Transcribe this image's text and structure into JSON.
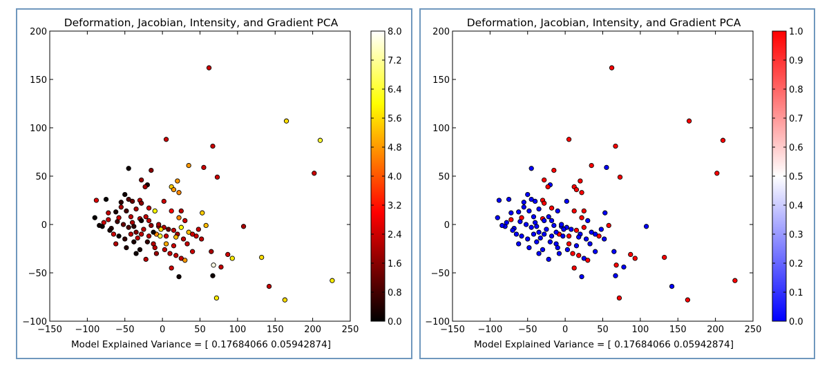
{
  "colors": {
    "frame": "#6f97bd",
    "cmap_hot": [
      "#000000",
      "#ff0000",
      "#ffff00",
      "#ffffff"
    ],
    "cmap_bwr": [
      "#0000ff",
      "#ffffff",
      "#ff0000"
    ]
  },
  "chart_data": [
    {
      "type": "scatter",
      "title": "Deformation, Jacobian, Intensity, and Gradient PCA",
      "xlabel": "Model Explained Variance = [ 0.17684066  0.05942874]",
      "ylabel": "",
      "xlim": [
        -150,
        250
      ],
      "ylim": [
        -100,
        200
      ],
      "xticks": [
        -150,
        -100,
        -50,
        0,
        50,
        100,
        150,
        200,
        250
      ],
      "yticks": [
        -100,
        -50,
        0,
        50,
        100,
        150,
        200
      ],
      "grid": false,
      "colormap": "hot",
      "colorbar": {
        "min": 0.0,
        "max": 8.0,
        "ticks": [
          "0.0",
          "0.8",
          "1.6",
          "2.4",
          "3.2",
          "4.0",
          "4.8",
          "5.6",
          "6.4",
          "7.2",
          "8.0"
        ]
      },
      "points": [
        [
          62,
          162,
          2.4
        ],
        [
          165,
          107,
          5.6
        ],
        [
          210,
          87,
          6.4
        ],
        [
          5,
          88,
          2.4
        ],
        [
          67,
          81,
          2.4
        ],
        [
          202,
          53,
          2.4
        ],
        [
          -45,
          58,
          0.2
        ],
        [
          -15,
          56,
          1.6
        ],
        [
          35,
          61,
          4.8
        ],
        [
          55,
          59,
          2.4
        ],
        [
          73,
          49,
          2.4
        ],
        [
          20,
          45,
          4.8
        ],
        [
          -28,
          46,
          1.8
        ],
        [
          -20,
          41,
          0.3
        ],
        [
          -23,
          39,
          2.0
        ],
        [
          12,
          39,
          5.4
        ],
        [
          15,
          36,
          4.8
        ],
        [
          22,
          33,
          4.6
        ],
        [
          -50,
          31,
          0.2
        ],
        [
          -45,
          26,
          1.0
        ],
        [
          -40,
          24,
          1.2
        ],
        [
          -55,
          23,
          0.5
        ],
        [
          -88,
          25,
          2.6
        ],
        [
          -75,
          26,
          0.1
        ],
        [
          -30,
          25,
          2.3
        ],
        [
          -28,
          22,
          1.6
        ],
        [
          -18,
          17,
          2.4
        ],
        [
          2,
          24,
          2.4
        ],
        [
          -10,
          14,
          6.0
        ],
        [
          12,
          14,
          3.0
        ],
        [
          25,
          14,
          2.2
        ],
        [
          53,
          12,
          5.4
        ],
        [
          -55,
          18,
          2.0
        ],
        [
          -62,
          13,
          0.3
        ],
        [
          -72,
          12,
          2.3
        ],
        [
          -35,
          16,
          2.0
        ],
        [
          -48,
          14,
          0.8
        ],
        [
          -90,
          7,
          0.1
        ],
        [
          -80,
          -2,
          0.2
        ],
        [
          -68,
          -4,
          0.5
        ],
        [
          -72,
          5,
          2.3
        ],
        [
          -60,
          3,
          0.8
        ],
        [
          -52,
          0,
          1.2
        ],
        [
          -45,
          -3,
          0.9
        ],
        [
          -40,
          2,
          2.0
        ],
        [
          -35,
          -8,
          1.5
        ],
        [
          -30,
          6,
          2.2
        ],
        [
          -22,
          8,
          2.3
        ],
        [
          -15,
          -1,
          1.7
        ],
        [
          -5,
          -2,
          2.0
        ],
        [
          -8,
          -10,
          4.6
        ],
        [
          2,
          -3,
          2.2
        ],
        [
          8,
          -5,
          1.2
        ],
        [
          5,
          -12,
          2.4
        ],
        [
          15,
          -6,
          2.3
        ],
        [
          20,
          -10,
          2.0
        ],
        [
          25,
          -3,
          6.0
        ],
        [
          35,
          -8,
          5.2
        ],
        [
          45,
          -12,
          2.4
        ],
        [
          58,
          -1,
          5.2
        ],
        [
          52,
          -15,
          2.2
        ],
        [
          22,
          7,
          4.6
        ],
        [
          30,
          4,
          2.4
        ],
        [
          -3,
          -12,
          6.4
        ],
        [
          -12,
          -20,
          2.1
        ],
        [
          -20,
          -18,
          0.6
        ],
        [
          -28,
          -10,
          2.2
        ],
        [
          -38,
          -18,
          0.3
        ],
        [
          -50,
          -15,
          0.6
        ],
        [
          -58,
          -12,
          0.2
        ],
        [
          -62,
          -20,
          2.1
        ],
        [
          -48,
          -24,
          0.4
        ],
        [
          -35,
          -30,
          0.2
        ],
        [
          -22,
          -36,
          2.2
        ],
        [
          -8,
          -30,
          1.8
        ],
        [
          3,
          -26,
          2.3
        ],
        [
          10,
          -30,
          2.3
        ],
        [
          18,
          -32,
          2.3
        ],
        [
          25,
          -35,
          2.3
        ],
        [
          30,
          -37,
          4.8
        ],
        [
          5,
          -20,
          5.0
        ],
        [
          15,
          -22,
          2.4
        ],
        [
          28,
          -15,
          2.2
        ],
        [
          40,
          -10,
          2.4
        ],
        [
          -42,
          -10,
          2.2
        ],
        [
          -30,
          -26,
          0.3
        ],
        [
          -25,
          -5,
          2.2
        ],
        [
          -38,
          -2,
          0.5
        ],
        [
          -12,
          -8,
          0.2
        ],
        [
          108,
          -2,
          2.0
        ],
        [
          65,
          -28,
          2.0
        ],
        [
          78,
          -44,
          2.3
        ],
        [
          87,
          -31,
          2.4
        ],
        [
          93,
          -35,
          5.8
        ],
        [
          132,
          -34,
          5.6
        ],
        [
          142,
          -64,
          2.3
        ],
        [
          163,
          -78,
          5.6
        ],
        [
          226,
          -58,
          5.8
        ],
        [
          68,
          -42,
          7.8
        ],
        [
          72,
          -76,
          5.8
        ],
        [
          67,
          -53,
          0.2
        ],
        [
          22,
          -54,
          0.2
        ],
        [
          -5,
          0,
          2.0
        ],
        [
          -18,
          4,
          2.3
        ],
        [
          -65,
          -10,
          2.4
        ],
        [
          -78,
          2,
          2.4
        ],
        [
          -58,
          7,
          2.4
        ],
        [
          -42,
          8,
          2.2
        ],
        [
          18,
          -13,
          5.2
        ],
        [
          -2,
          -5,
          5.6
        ],
        [
          12,
          -45,
          2.4
        ],
        [
          -28,
          4,
          0.2
        ],
        [
          -10,
          -24,
          2.2
        ],
        [
          33,
          -20,
          2.3
        ],
        [
          40,
          -28,
          2.4
        ],
        [
          48,
          -5,
          2.3
        ],
        [
          -70,
          -6,
          0.3
        ],
        [
          -84,
          -1,
          0.2
        ],
        [
          -33,
          -14,
          2.3
        ],
        [
          -18,
          -12,
          2.2
        ]
      ]
    },
    {
      "type": "scatter",
      "title": "Deformation, Jacobian, Intensity, and Gradient PCA",
      "xlabel": "Model Explained Variance = [ 0.17684066  0.05942874]",
      "ylabel": "",
      "xlim": [
        -150,
        250
      ],
      "ylim": [
        -100,
        200
      ],
      "xticks": [
        -150,
        -100,
        -50,
        0,
        50,
        100,
        150,
        200,
        250
      ],
      "yticks": [
        -100,
        -50,
        0,
        50,
        100,
        150,
        200
      ],
      "grid": false,
      "colormap": "bwr",
      "colorbar": {
        "min": 0.0,
        "max": 1.0,
        "ticks": [
          "0.0",
          "0.1",
          "0.2",
          "0.3",
          "0.4",
          "0.5",
          "0.6",
          "0.7",
          "0.8",
          "0.9",
          "1.0"
        ]
      },
      "points": [
        [
          62,
          162,
          1
        ],
        [
          165,
          107,
          1
        ],
        [
          210,
          87,
          1
        ],
        [
          5,
          88,
          1
        ],
        [
          67,
          81,
          1
        ],
        [
          202,
          53,
          1
        ],
        [
          -45,
          58,
          0
        ],
        [
          -15,
          56,
          1
        ],
        [
          35,
          61,
          1
        ],
        [
          55,
          59,
          0
        ],
        [
          73,
          49,
          1
        ],
        [
          20,
          45,
          1
        ],
        [
          -28,
          46,
          1
        ],
        [
          -20,
          41,
          0
        ],
        [
          -23,
          39,
          1
        ],
        [
          12,
          39,
          1
        ],
        [
          15,
          36,
          1
        ],
        [
          22,
          33,
          1
        ],
        [
          -50,
          31,
          0
        ],
        [
          -45,
          26,
          0
        ],
        [
          -40,
          24,
          0
        ],
        [
          -55,
          23,
          0
        ],
        [
          -88,
          25,
          0
        ],
        [
          -75,
          26,
          0
        ],
        [
          -30,
          25,
          1
        ],
        [
          -28,
          22,
          1
        ],
        [
          -18,
          17,
          1
        ],
        [
          2,
          24,
          0
        ],
        [
          -10,
          14,
          0
        ],
        [
          12,
          14,
          1
        ],
        [
          25,
          14,
          1
        ],
        [
          53,
          12,
          0
        ],
        [
          -55,
          18,
          0
        ],
        [
          -62,
          13,
          0
        ],
        [
          -72,
          12,
          0
        ],
        [
          -35,
          16,
          0
        ],
        [
          -48,
          14,
          0
        ],
        [
          -90,
          7,
          0
        ],
        [
          -80,
          -2,
          0
        ],
        [
          -68,
          -4,
          0
        ],
        [
          -72,
          5,
          1
        ],
        [
          -60,
          3,
          0
        ],
        [
          -52,
          0,
          0
        ],
        [
          -45,
          -3,
          0
        ],
        [
          -40,
          2,
          0
        ],
        [
          -35,
          -8,
          0
        ],
        [
          -30,
          6,
          1
        ],
        [
          -22,
          8,
          0
        ],
        [
          -15,
          -1,
          0
        ],
        [
          -5,
          -2,
          0
        ],
        [
          -8,
          -10,
          1
        ],
        [
          2,
          -3,
          0
        ],
        [
          8,
          -5,
          0
        ],
        [
          5,
          -12,
          1
        ],
        [
          15,
          -6,
          1
        ],
        [
          20,
          -10,
          0
        ],
        [
          25,
          -3,
          1
        ],
        [
          35,
          -8,
          0
        ],
        [
          45,
          -12,
          1
        ],
        [
          58,
          -1,
          1
        ],
        [
          52,
          -15,
          0
        ],
        [
          22,
          7,
          1
        ],
        [
          30,
          4,
          0
        ],
        [
          -3,
          -12,
          0
        ],
        [
          -12,
          -20,
          0
        ],
        [
          -20,
          -18,
          0
        ],
        [
          -28,
          -10,
          0
        ],
        [
          -38,
          -18,
          0
        ],
        [
          -50,
          -15,
          0
        ],
        [
          -58,
          -12,
          0
        ],
        [
          -62,
          -20,
          0
        ],
        [
          -48,
          -24,
          0
        ],
        [
          -35,
          -30,
          0
        ],
        [
          -22,
          -36,
          0
        ],
        [
          -8,
          -30,
          0
        ],
        [
          3,
          -26,
          0
        ],
        [
          10,
          -30,
          1
        ],
        [
          18,
          -32,
          1
        ],
        [
          25,
          -35,
          0
        ],
        [
          30,
          -37,
          1
        ],
        [
          5,
          -20,
          1
        ],
        [
          15,
          -22,
          0
        ],
        [
          28,
          -15,
          0
        ],
        [
          40,
          -10,
          0
        ],
        [
          -42,
          -10,
          0
        ],
        [
          -30,
          -26,
          0
        ],
        [
          -25,
          -5,
          0
        ],
        [
          -38,
          -2,
          0
        ],
        [
          -12,
          -8,
          0
        ],
        [
          108,
          -2,
          0
        ],
        [
          65,
          -28,
          0
        ],
        [
          78,
          -44,
          0
        ],
        [
          87,
          -31,
          1
        ],
        [
          93,
          -35,
          1
        ],
        [
          132,
          -34,
          1
        ],
        [
          142,
          -64,
          0
        ],
        [
          163,
          -78,
          1
        ],
        [
          226,
          -58,
          1
        ],
        [
          68,
          -42,
          1
        ],
        [
          72,
          -76,
          1
        ],
        [
          67,
          -53,
          0
        ],
        [
          22,
          -54,
          0
        ],
        [
          -5,
          0,
          0
        ],
        [
          -18,
          4,
          0
        ],
        [
          -65,
          -10,
          0
        ],
        [
          -78,
          2,
          0
        ],
        [
          -58,
          7,
          1
        ],
        [
          -42,
          8,
          0
        ],
        [
          18,
          -13,
          0
        ],
        [
          -2,
          -5,
          0
        ],
        [
          12,
          -45,
          1
        ],
        [
          -28,
          4,
          0
        ],
        [
          -10,
          -24,
          0
        ],
        [
          33,
          -20,
          0
        ],
        [
          40,
          -28,
          0
        ],
        [
          48,
          -5,
          0
        ],
        [
          -70,
          -6,
          0
        ],
        [
          -84,
          -1,
          0
        ],
        [
          -33,
          -14,
          0
        ],
        [
          -18,
          -12,
          0
        ]
      ]
    }
  ]
}
